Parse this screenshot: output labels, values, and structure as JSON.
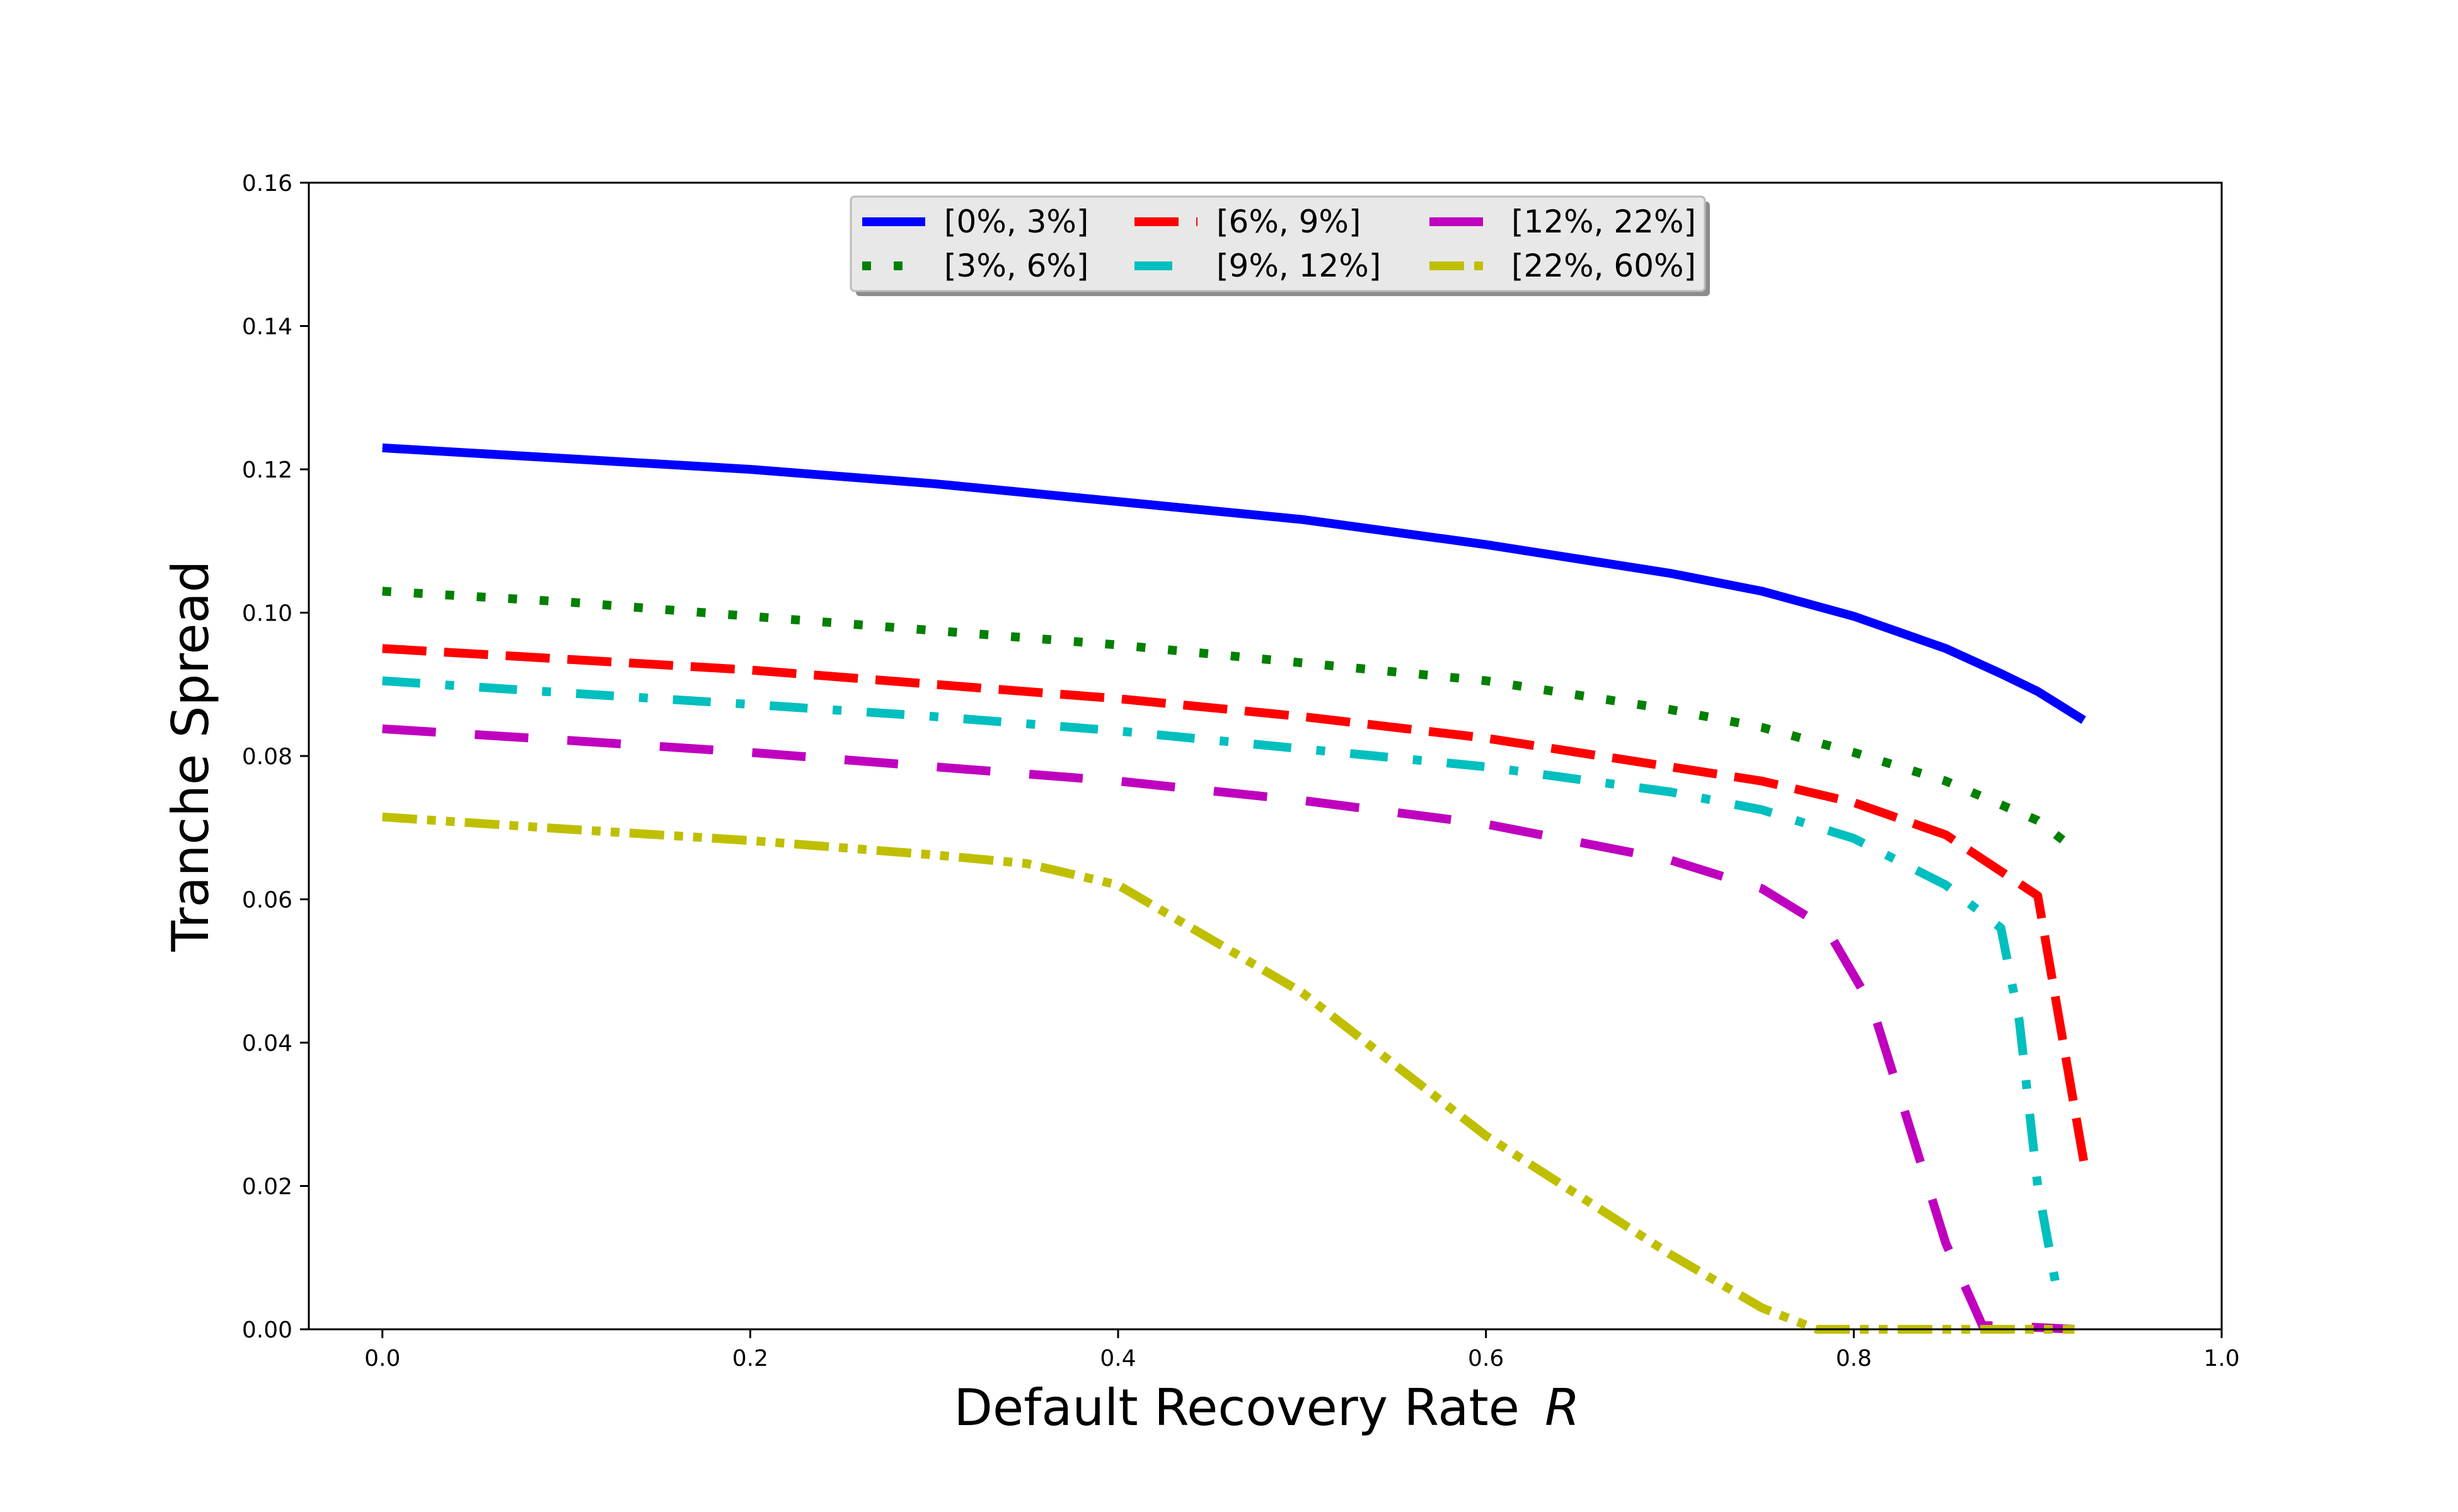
{
  "chart_data": {
    "type": "line",
    "xlabel": "Default Recovery Rate",
    "xlabel_symbol": "R",
    "ylabel": "Tranche Spread",
    "xlim": [
      -0.04,
      1.0
    ],
    "ylim": [
      0.0,
      0.16
    ],
    "xticks": [
      0.0,
      0.2,
      0.4,
      0.6,
      0.8,
      1.0
    ],
    "xtick_labels": [
      "0.0",
      "0.2",
      "0.4",
      "0.6",
      "0.8",
      "1.0"
    ],
    "yticks": [
      0.0,
      0.02,
      0.04,
      0.06,
      0.08,
      0.1,
      0.12,
      0.14,
      0.16
    ],
    "ytick_labels": [
      "0.00",
      "0.02",
      "0.04",
      "0.06",
      "0.08",
      "0.10",
      "0.12",
      "0.14",
      "0.16"
    ],
    "grid": false,
    "legend_position": "top-center",
    "series": [
      {
        "name": "[0%, 3%]",
        "color": "#0000ff",
        "style": "solid",
        "points": [
          [
            0.0,
            0.123
          ],
          [
            0.1,
            0.1215
          ],
          [
            0.2,
            0.12
          ],
          [
            0.3,
            0.118
          ],
          [
            0.4,
            0.1155
          ],
          [
            0.5,
            0.113
          ],
          [
            0.6,
            0.1095
          ],
          [
            0.7,
            0.1055
          ],
          [
            0.75,
            0.103
          ],
          [
            0.8,
            0.0995
          ],
          [
            0.85,
            0.095
          ],
          [
            0.88,
            0.0915
          ],
          [
            0.9,
            0.089
          ],
          [
            0.925,
            0.085
          ]
        ]
      },
      {
        "name": "[3%, 6%]",
        "color": "#008000",
        "style": "dotted",
        "points": [
          [
            0.0,
            0.103
          ],
          [
            0.1,
            0.1015
          ],
          [
            0.2,
            0.0995
          ],
          [
            0.3,
            0.0975
          ],
          [
            0.4,
            0.0955
          ],
          [
            0.5,
            0.093
          ],
          [
            0.6,
            0.0905
          ],
          [
            0.7,
            0.0865
          ],
          [
            0.75,
            0.084
          ],
          [
            0.8,
            0.0805
          ],
          [
            0.85,
            0.0765
          ],
          [
            0.9,
            0.071
          ],
          [
            0.92,
            0.067
          ]
        ]
      },
      {
        "name": "[6%, 9%]",
        "color": "#ff0000",
        "style": "dashed",
        "points": [
          [
            0.0,
            0.095
          ],
          [
            0.1,
            0.0935
          ],
          [
            0.2,
            0.092
          ],
          [
            0.3,
            0.09
          ],
          [
            0.4,
            0.088
          ],
          [
            0.5,
            0.0855
          ],
          [
            0.6,
            0.0825
          ],
          [
            0.7,
            0.0785
          ],
          [
            0.75,
            0.0765
          ],
          [
            0.8,
            0.0735
          ],
          [
            0.85,
            0.069
          ],
          [
            0.9,
            0.0605
          ],
          [
            0.925,
            0.0235
          ]
        ]
      },
      {
        "name": "[9%, 12%]",
        "color": "#00bfbf",
        "style": "dashdot",
        "points": [
          [
            0.0,
            0.0905
          ],
          [
            0.1,
            0.0888
          ],
          [
            0.2,
            0.0872
          ],
          [
            0.3,
            0.0855
          ],
          [
            0.4,
            0.0835
          ],
          [
            0.5,
            0.081
          ],
          [
            0.6,
            0.0785
          ],
          [
            0.7,
            0.075
          ],
          [
            0.75,
            0.0725
          ],
          [
            0.8,
            0.0685
          ],
          [
            0.85,
            0.062
          ],
          [
            0.88,
            0.056
          ],
          [
            0.89,
            0.043
          ],
          [
            0.9,
            0.02
          ],
          [
            0.91,
            0.006
          ]
        ]
      },
      {
        "name": "[12%, 22%]",
        "color": "#bf00bf",
        "style": "longdash",
        "points": [
          [
            0.0,
            0.0838
          ],
          [
            0.1,
            0.0822
          ],
          [
            0.2,
            0.0805
          ],
          [
            0.3,
            0.0785
          ],
          [
            0.4,
            0.0765
          ],
          [
            0.5,
            0.0738
          ],
          [
            0.6,
            0.0705
          ],
          [
            0.7,
            0.0655
          ],
          [
            0.75,
            0.0615
          ],
          [
            0.785,
            0.056
          ],
          [
            0.81,
            0.045
          ],
          [
            0.85,
            0.012
          ],
          [
            0.87,
            0.0005
          ],
          [
            0.88,
            0.0005
          ],
          [
            0.92,
            0.0
          ]
        ]
      },
      {
        "name": "[22%, 60%]",
        "color": "#bfbf00",
        "style": "dashdotdot",
        "points": [
          [
            0.0,
            0.0715
          ],
          [
            0.1,
            0.0698
          ],
          [
            0.2,
            0.0682
          ],
          [
            0.3,
            0.0662
          ],
          [
            0.35,
            0.065
          ],
          [
            0.4,
            0.062
          ],
          [
            0.42,
            0.059
          ],
          [
            0.5,
            0.047
          ],
          [
            0.6,
            0.027
          ],
          [
            0.7,
            0.0105
          ],
          [
            0.75,
            0.003
          ],
          [
            0.78,
            0.0
          ],
          [
            0.85,
            0.0
          ],
          [
            0.92,
            0.0
          ]
        ]
      }
    ]
  }
}
